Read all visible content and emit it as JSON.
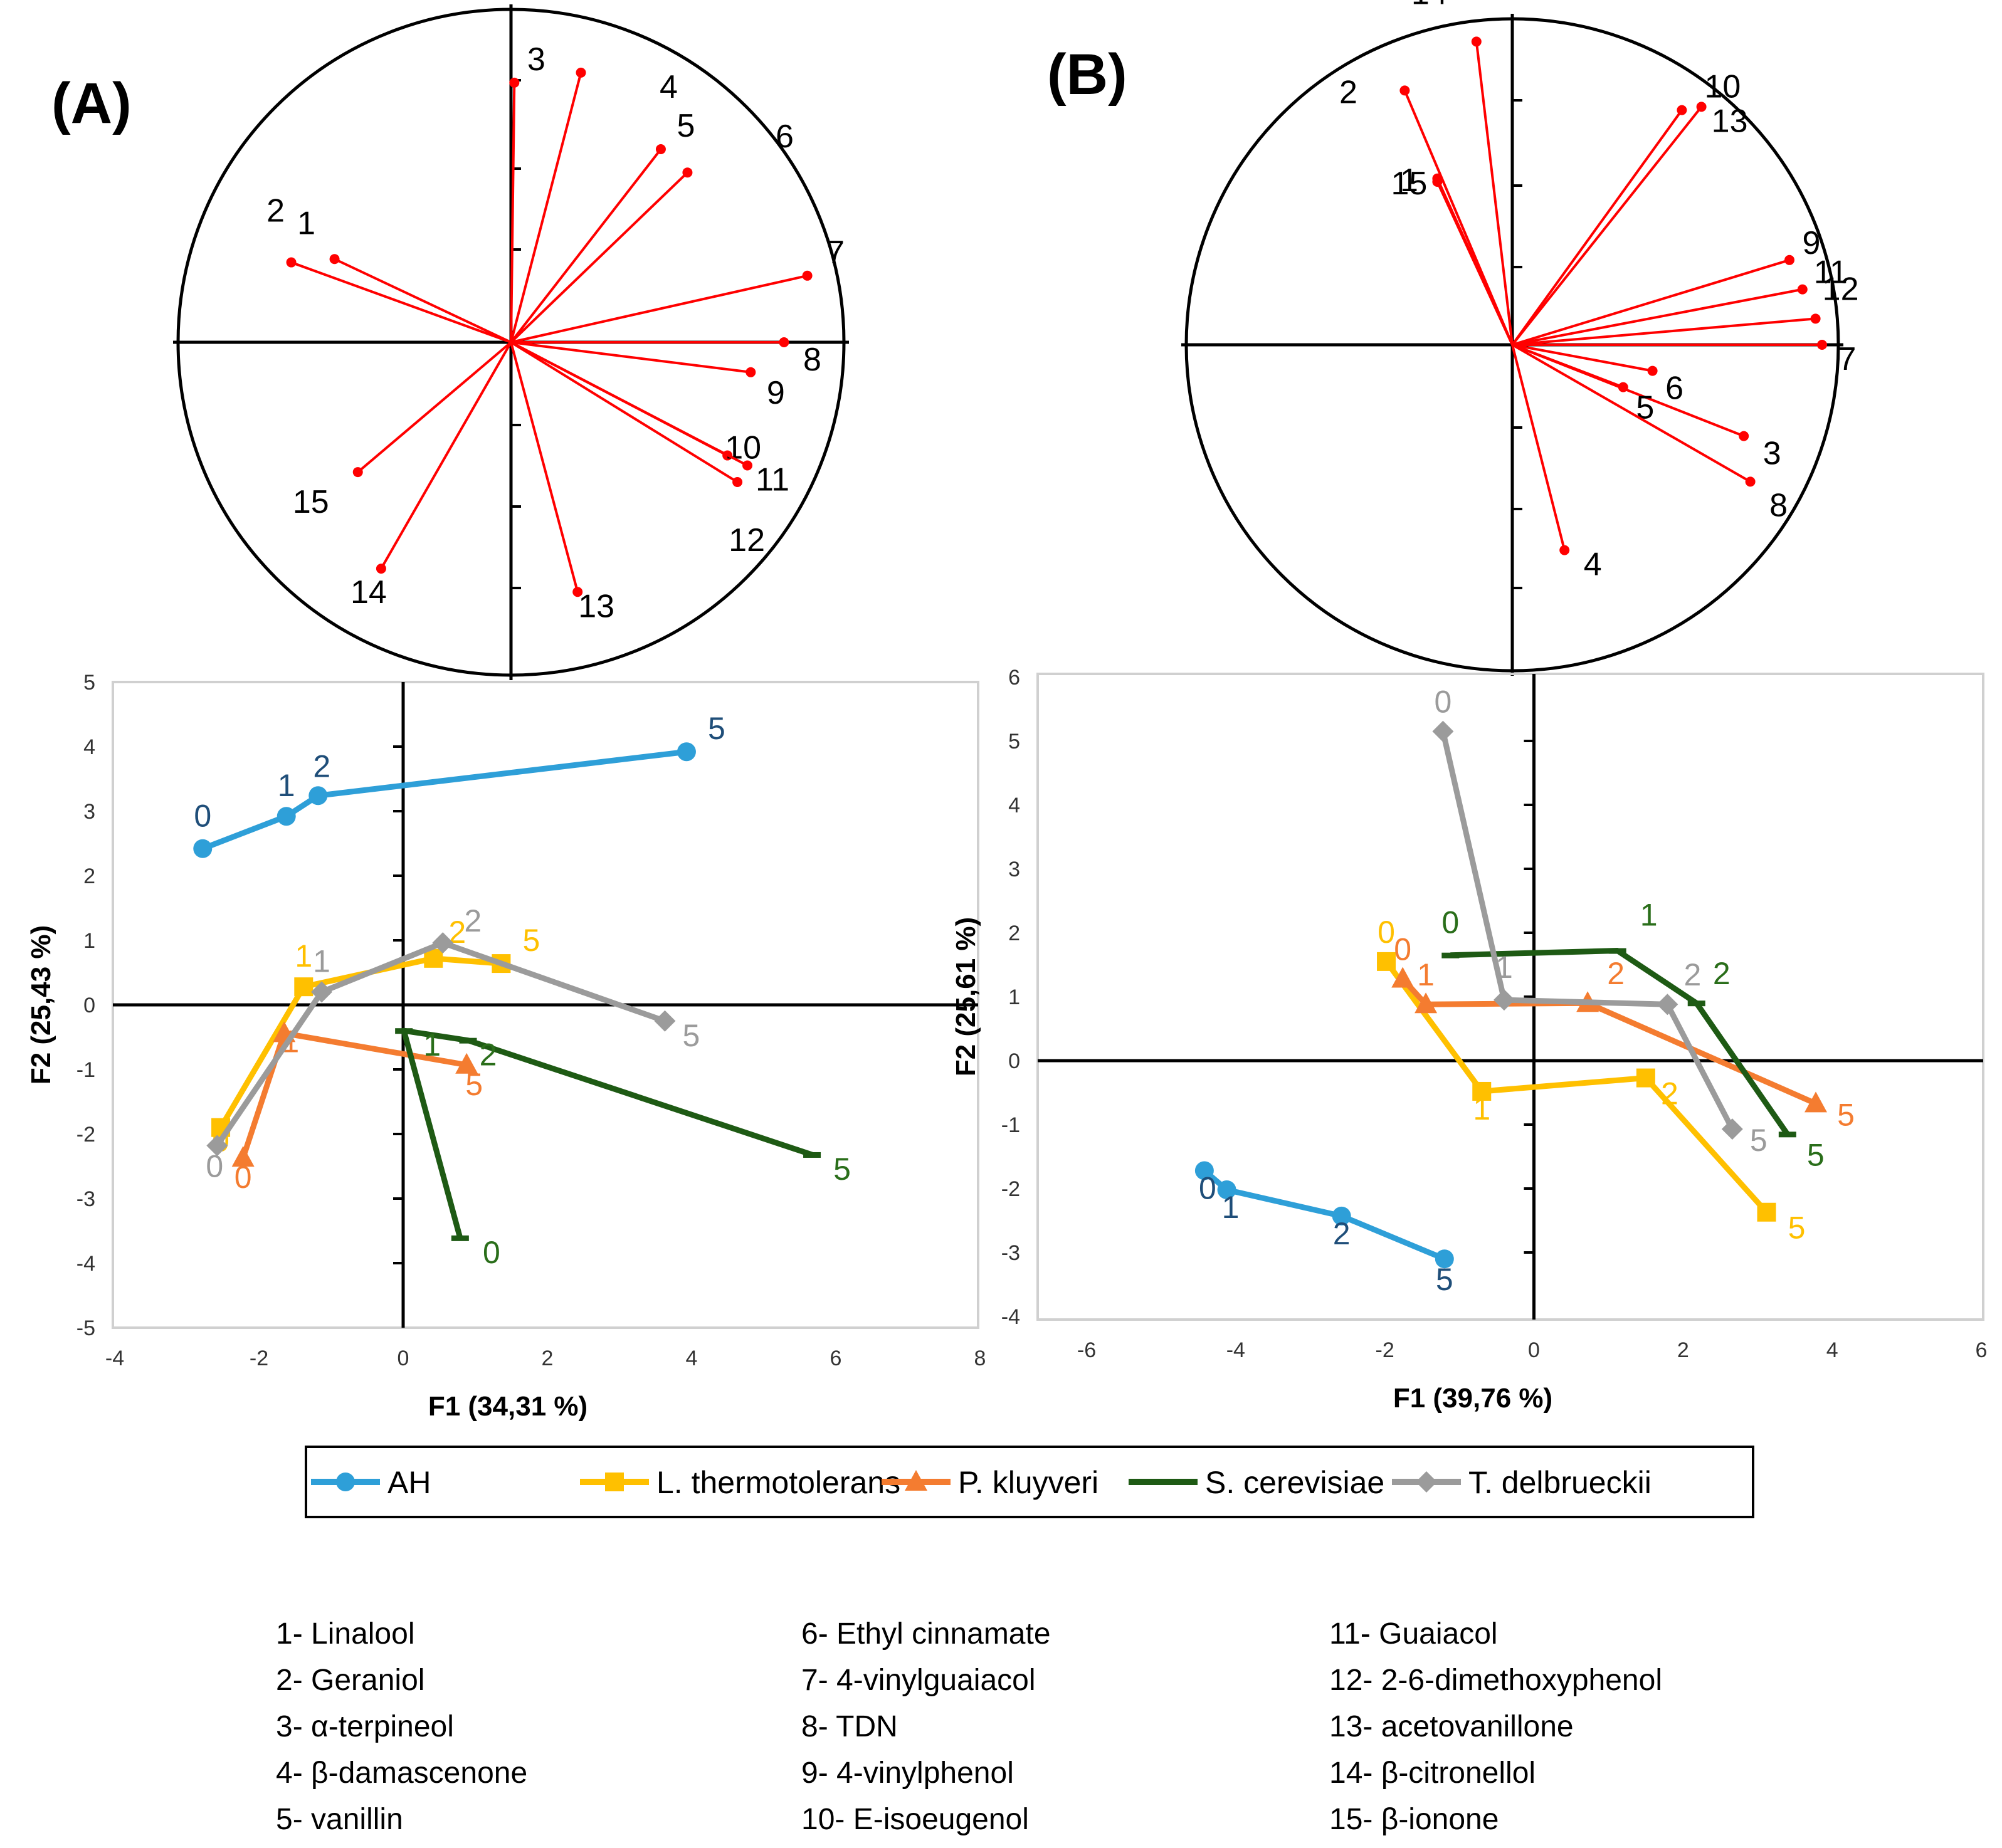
{
  "panels": [
    {
      "id": "A",
      "label": "(A)"
    },
    {
      "id": "B",
      "label": "(B)"
    }
  ],
  "series_colors": {
    "AH": "#2e9fd8",
    "L. thermotolerans": "#ffc000",
    "P. kluyveri": "#f47c30",
    "S. cerevisiae": "#1e5a14",
    "T. delbrueckii": "#9b9b9b"
  },
  "label_colors": {
    "AH": "#1f4e79",
    "L. thermotolerans": "#ffc000",
    "P. kluyveri": "#f47c30",
    "S. cerevisiae": "#2a6e1a",
    "T. delbrueckii": "#9b9b9b"
  },
  "legend": {
    "entries": [
      {
        "name": "AH",
        "marker": "circle"
      },
      {
        "name": "L. thermotolerans",
        "marker": "square"
      },
      {
        "name": "P. kluyveri",
        "marker": "triangle"
      },
      {
        "name": "S. cerevisiae",
        "marker": "dash"
      },
      {
        "name": "T. delbrueckii",
        "marker": "diamond"
      }
    ]
  },
  "compounds": [
    "1- Linalool",
    "2- Geraniol",
    "3- α-terpineol",
    "4- β-damascenone",
    "5- vanillin",
    "6- Ethyl cinnamate",
    "7- 4-vinylguaiacol",
    "8- TDN",
    "9- 4-vinylphenol",
    "10- E-isoeugenol",
    "11- Guaiacol",
    "12- 2-6-dimethoxyphenol",
    "13- acetovanillone",
    "14- β-citronellol",
    "15- β-ionone"
  ],
  "chart_data": [
    {
      "panel": "A",
      "type": "line",
      "xlabel": "F1 (34,31 %)",
      "ylabel": "F2 (25,43 %)",
      "xlim": [
        -4,
        8
      ],
      "ylim": [
        -5,
        5
      ],
      "xticks": [
        -4,
        -2,
        0,
        2,
        4,
        6,
        8
      ],
      "yticks": [
        -5,
        -4,
        -3,
        -2,
        -1,
        0,
        1,
        2,
        3,
        4,
        5
      ],
      "series": [
        {
          "name": "AH",
          "points": [
            {
              "label": "0",
              "x": -2.78,
              "y": 2.42
            },
            {
              "label": "1",
              "x": -1.62,
              "y": 2.92
            },
            {
              "label": "2",
              "x": -1.18,
              "y": 3.24
            },
            {
              "label": "5",
              "x": 3.93,
              "y": 3.92
            }
          ]
        },
        {
          "name": "L. thermotolerans",
          "points": [
            {
              "label": "0",
              "x": -2.53,
              "y": -1.9
            },
            {
              "label": "1",
              "x": -1.38,
              "y": 0.28
            },
            {
              "label": "2",
              "x": 0.42,
              "y": 0.72
            },
            {
              "label": "5",
              "x": 1.36,
              "y": 0.64
            }
          ]
        },
        {
          "name": "P. kluyveri",
          "points": [
            {
              "label": "0",
              "x": -2.22,
              "y": -2.37
            },
            {
              "label": "1",
              "x": -1.65,
              "y": -0.44
            },
            {
              "label": "5",
              "x": 0.88,
              "y": -0.93
            }
          ]
        },
        {
          "name": "S. cerevisiae",
          "points": [
            {
              "label": "0",
              "x": 0.79,
              "y": -3.61
            },
            {
              "label": "1",
              "x": 0.01,
              "y": -0.4
            },
            {
              "label": "2",
              "x": 0.9,
              "y": -0.55
            },
            {
              "label": "5",
              "x": 5.67,
              "y": -2.32
            }
          ]
        },
        {
          "name": "T. delbrueckii",
          "points": [
            {
              "label": "0",
              "x": -2.58,
              "y": -2.18
            },
            {
              "label": "1",
              "x": -1.13,
              "y": 0.2
            },
            {
              "label": "2",
              "x": 0.55,
              "y": 0.96
            },
            {
              "label": "5",
              "x": 3.63,
              "y": -0.25
            }
          ]
        }
      ]
    },
    {
      "panel": "B",
      "type": "line",
      "xlabel": "F1 (39,76 %)",
      "ylabel": "F2 (25,61 %)",
      "xlim": [
        -6,
        6
      ],
      "ylim": [
        -4,
        6
      ],
      "xticks": [
        -6,
        -4,
        -2,
        0,
        2,
        4,
        6
      ],
      "yticks": [
        -4,
        -3,
        -2,
        -1,
        0,
        1,
        2,
        3,
        4,
        5,
        6
      ],
      "series": [
        {
          "name": "AH",
          "points": [
            {
              "label": "0",
              "x": -4.42,
              "y": -1.72
            },
            {
              "label": "1",
              "x": -4.12,
              "y": -2.02
            },
            {
              "label": "2",
              "x": -2.58,
              "y": -2.43
            },
            {
              "label": "5",
              "x": -1.2,
              "y": -3.1
            }
          ]
        },
        {
          "name": "L. thermotolerans",
          "points": [
            {
              "label": "0",
              "x": -1.98,
              "y": 1.55
            },
            {
              "label": "1",
              "x": -0.7,
              "y": -0.48
            },
            {
              "label": "2",
              "x": 1.5,
              "y": -0.27
            },
            {
              "label": "5",
              "x": 3.12,
              "y": -2.37
            }
          ]
        },
        {
          "name": "P. kluyveri",
          "points": [
            {
              "label": "0",
              "x": -1.76,
              "y": 1.28
            },
            {
              "label": "1",
              "x": -1.45,
              "y": 0.88
            },
            {
              "label": "2",
              "x": 0.72,
              "y": 0.9
            },
            {
              "label": "5",
              "x": 3.78,
              "y": -0.67
            }
          ]
        },
        {
          "name": "S. cerevisiae",
          "points": [
            {
              "label": "0",
              "x": -1.12,
              "y": 1.65
            },
            {
              "label": "1",
              "x": 1.12,
              "y": 1.72
            },
            {
              "label": "2",
              "x": 2.18,
              "y": 0.9
            },
            {
              "label": "5",
              "x": 3.4,
              "y": -1.15
            }
          ]
        },
        {
          "name": "T. delbrueckii",
          "points": [
            {
              "label": "0",
              "x": -1.22,
              "y": 5.15
            },
            {
              "label": "1",
              "x": -0.4,
              "y": 0.95
            },
            {
              "label": "2",
              "x": 1.79,
              "y": 0.88
            },
            {
              "label": "5",
              "x": 2.66,
              "y": -1.07
            }
          ]
        }
      ]
    },
    {
      "panel": "A",
      "type": "scatter",
      "role": "loading-circle",
      "vectors": [
        {
          "label": "1",
          "x": -0.53,
          "y": 0.25
        },
        {
          "label": "2",
          "x": -0.66,
          "y": 0.24
        },
        {
          "label": "3",
          "x": 0.01,
          "y": 0.78
        },
        {
          "label": "4",
          "x": 0.21,
          "y": 0.81
        },
        {
          "label": "5",
          "x": 0.45,
          "y": 0.58
        },
        {
          "label": "6",
          "x": 0.53,
          "y": 0.51
        },
        {
          "label": "7",
          "x": 0.89,
          "y": 0.2
        },
        {
          "label": "8",
          "x": 0.82,
          "y": 0.0
        },
        {
          "label": "9",
          "x": 0.72,
          "y": -0.09
        },
        {
          "label": "10",
          "x": 0.65,
          "y": -0.34
        },
        {
          "label": "11",
          "x": 0.71,
          "y": -0.37
        },
        {
          "label": "12",
          "x": 0.68,
          "y": -0.42
        },
        {
          "label": "13",
          "x": 0.2,
          "y": -0.75
        },
        {
          "label": "14",
          "x": -0.39,
          "y": -0.68
        },
        {
          "label": "15",
          "x": -0.46,
          "y": -0.39
        }
      ]
    },
    {
      "panel": "B",
      "type": "scatter",
      "role": "loading-circle",
      "vectors": [
        {
          "label": "1",
          "x": -0.23,
          "y": 0.51
        },
        {
          "label": "2",
          "x": -0.33,
          "y": 0.78
        },
        {
          "label": "3",
          "x": 0.71,
          "y": -0.28
        },
        {
          "label": "4",
          "x": 0.16,
          "y": -0.63
        },
        {
          "label": "5",
          "x": 0.34,
          "y": -0.13
        },
        {
          "label": "6",
          "x": 0.43,
          "y": -0.08
        },
        {
          "label": "7",
          "x": 0.95,
          "y": 0.0
        },
        {
          "label": "8",
          "x": 0.73,
          "y": -0.42
        },
        {
          "label": "9",
          "x": 0.85,
          "y": 0.26
        },
        {
          "label": "10",
          "x": 0.52,
          "y": 0.72
        },
        {
          "label": "11",
          "x": 0.89,
          "y": 0.17
        },
        {
          "label": "12",
          "x": 0.93,
          "y": 0.08
        },
        {
          "label": "13",
          "x": 0.58,
          "y": 0.73
        },
        {
          "label": "14",
          "x": -0.11,
          "y": 0.93
        },
        {
          "label": "15",
          "x": -0.23,
          "y": 0.5
        }
      ]
    }
  ]
}
